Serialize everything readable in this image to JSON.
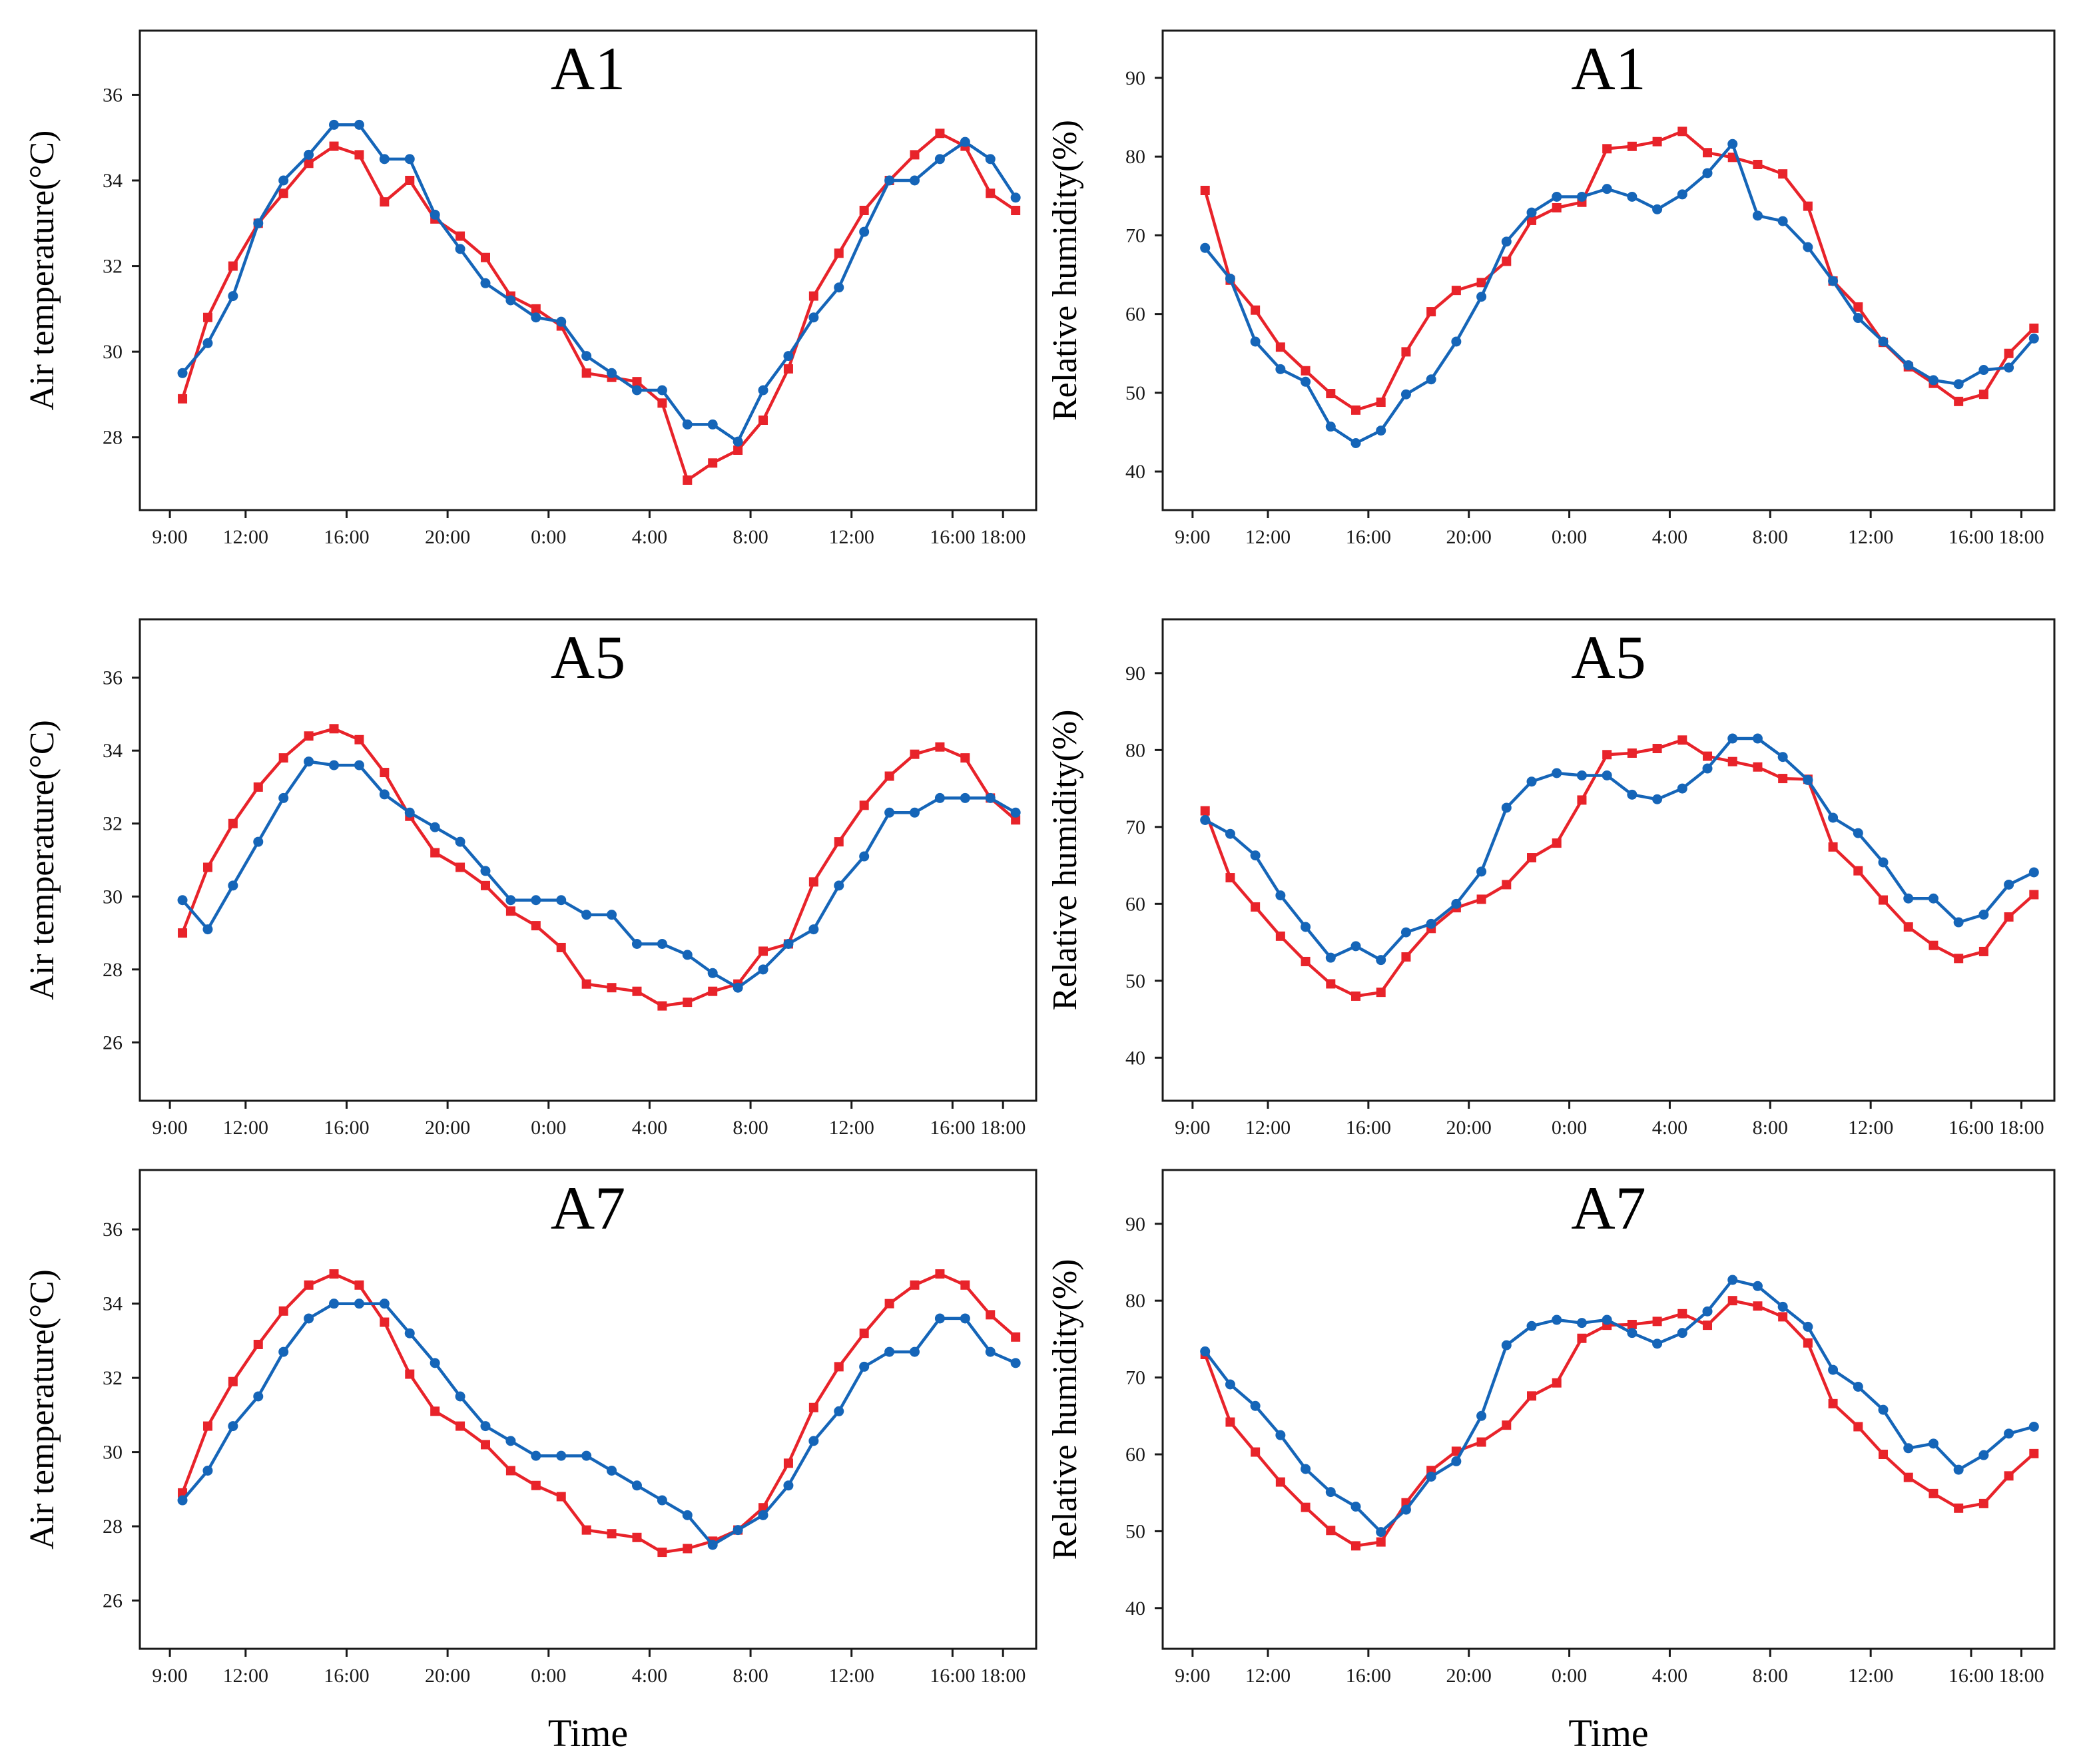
{
  "colors": {
    "series_red": "#e8232a",
    "series_blue": "#1565b8",
    "axis": "#1a1a1a"
  },
  "x_ticks": [
    "9:00",
    "12:00",
    "16:00",
    "20:00",
    "0:00",
    "4:00",
    "8:00",
    "12:00",
    "16:00",
    "18:00"
  ],
  "chart_data": [
    {
      "type": "line",
      "panel": "A1-temperature",
      "title": "A1",
      "xlabel": "",
      "ylabel": "Air temperature(°C)",
      "ylim": [
        26.3,
        37.5
      ],
      "yticks": [
        28,
        30,
        32,
        34,
        36
      ],
      "series": [
        {
          "name": "red",
          "marker": "square",
          "values": [
            28.9,
            30.8,
            32.0,
            33.0,
            33.7,
            34.4,
            34.8,
            34.6,
            33.5,
            34.0,
            33.1,
            32.7,
            32.2,
            31.3,
            31.0,
            30.6,
            29.5,
            29.4,
            29.3,
            28.8,
            27.0,
            27.4,
            27.7,
            28.4,
            29.6,
            31.3,
            32.3,
            33.3,
            34.0,
            34.6,
            35.1,
            34.8,
            33.7,
            33.3
          ]
        },
        {
          "name": "blue",
          "marker": "circle",
          "values": [
            29.5,
            30.2,
            31.3,
            33.0,
            34.0,
            34.6,
            35.3,
            35.3,
            34.5,
            34.5,
            33.2,
            32.4,
            31.6,
            31.2,
            30.8,
            30.7,
            29.9,
            29.5,
            29.1,
            29.1,
            28.3,
            28.3,
            27.9,
            29.1,
            29.9,
            30.8,
            31.5,
            32.8,
            34.0,
            34.0,
            34.5,
            34.9,
            34.5,
            33.6
          ]
        }
      ]
    },
    {
      "type": "line",
      "panel": "A1-humidity",
      "title": "A1",
      "xlabel": "",
      "ylabel": "Relative humidity(%)",
      "ylim": [
        35.1,
        96.0
      ],
      "yticks": [
        40,
        50,
        60,
        70,
        80,
        90
      ],
      "series": [
        {
          "name": "red",
          "marker": "square",
          "values": [
            75.7,
            64.3,
            60.5,
            55.8,
            52.8,
            49.9,
            47.8,
            48.8,
            55.2,
            60.3,
            63.0,
            64.0,
            66.7,
            71.9,
            73.5,
            74.2,
            81.0,
            81.3,
            81.9,
            83.2,
            80.5,
            79.9,
            79.0,
            77.8,
            73.7,
            64.2,
            60.9,
            56.4,
            53.3,
            51.2,
            48.9,
            49.8,
            55.0,
            58.2
          ]
        },
        {
          "name": "blue",
          "marker": "circle",
          "values": [
            68.4,
            64.5,
            56.5,
            53.0,
            51.4,
            45.7,
            43.6,
            45.2,
            49.8,
            51.7,
            56.5,
            62.2,
            69.2,
            72.9,
            74.9,
            74.9,
            75.9,
            74.9,
            73.3,
            75.2,
            77.9,
            81.6,
            72.5,
            71.8,
            68.5,
            64.2,
            59.5,
            56.5,
            53.5,
            51.6,
            51.1,
            52.9,
            53.2,
            56.9
          ]
        }
      ]
    },
    {
      "type": "line",
      "panel": "A5-temperature",
      "title": "A5",
      "xlabel": "",
      "ylabel": "Air temperature(°C)",
      "ylim": [
        24.4,
        37.6
      ],
      "yticks": [
        26,
        28,
        30,
        32,
        34,
        36
      ],
      "series": [
        {
          "name": "red",
          "marker": "square",
          "values": [
            29.0,
            30.8,
            32.0,
            33.0,
            33.8,
            34.4,
            34.6,
            34.3,
            33.4,
            32.2,
            31.2,
            30.8,
            30.3,
            29.6,
            29.2,
            28.6,
            27.6,
            27.5,
            27.4,
            27.0,
            27.1,
            27.4,
            27.6,
            28.5,
            28.7,
            30.4,
            31.5,
            32.5,
            33.3,
            33.9,
            34.1,
            33.8,
            32.7,
            32.1
          ]
        },
        {
          "name": "blue",
          "marker": "circle",
          "values": [
            29.9,
            29.1,
            30.3,
            31.5,
            32.7,
            33.7,
            33.6,
            33.6,
            32.8,
            32.3,
            31.9,
            31.5,
            30.7,
            29.9,
            29.9,
            29.9,
            29.5,
            29.5,
            28.7,
            28.7,
            28.4,
            27.9,
            27.5,
            28.0,
            28.7,
            29.1,
            30.3,
            31.1,
            32.3,
            32.3,
            32.7,
            32.7,
            32.7,
            32.3
          ]
        }
      ]
    },
    {
      "type": "line",
      "panel": "A5-humidity",
      "title": "A5",
      "xlabel": "",
      "ylabel": "Relative humidity(%)",
      "ylim": [
        34.4,
        97.0
      ],
      "yticks": [
        40,
        50,
        60,
        70,
        80,
        90
      ],
      "series": [
        {
          "name": "red",
          "marker": "square",
          "values": [
            72.1,
            63.4,
            59.6,
            55.8,
            52.5,
            49.6,
            48.0,
            48.5,
            53.1,
            56.8,
            59.5,
            60.6,
            62.5,
            66.0,
            67.9,
            73.5,
            79.4,
            79.6,
            80.2,
            81.3,
            79.2,
            78.5,
            77.8,
            76.3,
            76.2,
            67.4,
            64.3,
            60.5,
            57.0,
            54.6,
            52.9,
            53.8,
            58.3,
            61.2
          ]
        },
        {
          "name": "blue",
          "marker": "circle",
          "values": [
            70.9,
            69.1,
            66.3,
            61.1,
            57.0,
            53.0,
            54.5,
            52.7,
            56.3,
            57.4,
            60.0,
            64.2,
            72.5,
            75.9,
            77.0,
            76.7,
            76.7,
            74.2,
            73.6,
            75.0,
            77.6,
            81.5,
            81.5,
            79.1,
            76.1,
            71.2,
            69.2,
            65.4,
            60.7,
            60.7,
            57.6,
            58.6,
            62.5,
            64.1
          ]
        }
      ]
    },
    {
      "type": "line",
      "panel": "A7-temperature",
      "title": "A7",
      "xlabel": "Time",
      "ylabel": "Air temperature(°C)",
      "ylim": [
        24.7,
        37.6
      ],
      "yticks": [
        26,
        28,
        30,
        32,
        34,
        36
      ],
      "series": [
        {
          "name": "red",
          "marker": "square",
          "values": [
            28.9,
            30.7,
            31.9,
            32.9,
            33.8,
            34.5,
            34.8,
            34.5,
            33.5,
            32.1,
            31.1,
            30.7,
            30.2,
            29.5,
            29.1,
            28.8,
            27.9,
            27.8,
            27.7,
            27.3,
            27.4,
            27.6,
            27.9,
            28.5,
            29.7,
            31.2,
            32.3,
            33.2,
            34.0,
            34.5,
            34.8,
            34.5,
            33.7,
            33.1
          ]
        },
        {
          "name": "blue",
          "marker": "circle",
          "values": [
            28.7,
            29.5,
            30.7,
            31.5,
            32.7,
            33.6,
            34.0,
            34.0,
            34.0,
            33.2,
            32.4,
            31.5,
            30.7,
            30.3,
            29.9,
            29.9,
            29.9,
            29.5,
            29.1,
            28.7,
            28.3,
            27.5,
            27.9,
            28.3,
            29.1,
            30.3,
            31.1,
            32.3,
            32.7,
            32.7,
            33.6,
            33.6,
            32.7,
            32.4
          ]
        }
      ]
    },
    {
      "type": "line",
      "panel": "A7-humidity",
      "title": "A7",
      "xlabel": "Time",
      "ylabel": "Relative humidity(%)",
      "ylim": [
        34.7,
        97.0
      ],
      "yticks": [
        40,
        50,
        60,
        70,
        80,
        90
      ],
      "series": [
        {
          "name": "red",
          "marker": "square",
          "values": [
            73.0,
            64.2,
            60.3,
            56.4,
            53.1,
            50.1,
            48.1,
            48.6,
            53.7,
            57.9,
            60.4,
            61.6,
            63.8,
            67.6,
            69.3,
            75.1,
            76.8,
            76.9,
            77.3,
            78.3,
            76.8,
            80.0,
            79.3,
            77.9,
            74.5,
            66.6,
            63.6,
            60.0,
            57.0,
            54.9,
            53.0,
            53.6,
            57.2,
            60.1
          ]
        },
        {
          "name": "blue",
          "marker": "circle",
          "values": [
            73.4,
            69.1,
            66.3,
            62.5,
            58.1,
            55.1,
            53.2,
            49.9,
            52.8,
            57.1,
            59.1,
            65.0,
            74.2,
            76.7,
            77.5,
            77.1,
            77.5,
            75.8,
            74.4,
            75.8,
            78.6,
            82.7,
            81.9,
            79.2,
            76.6,
            71.0,
            68.8,
            65.8,
            60.8,
            61.4,
            58.0,
            59.9,
            62.7,
            63.6
          ]
        }
      ]
    }
  ]
}
